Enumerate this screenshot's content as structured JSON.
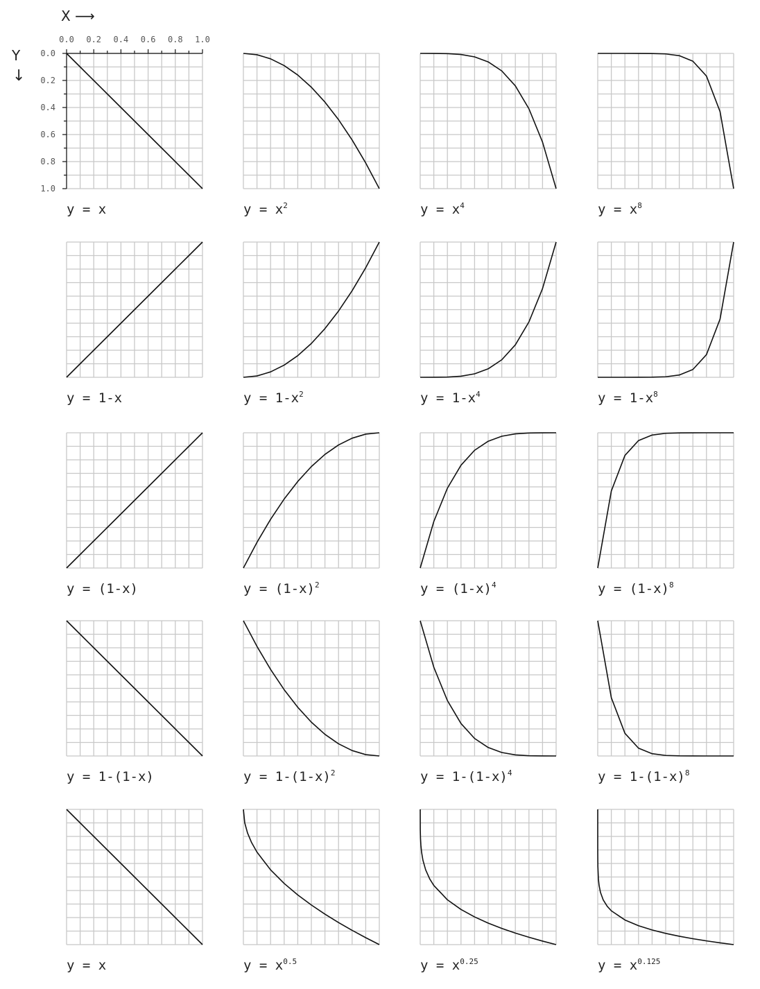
{
  "axes": {
    "x_title": "X",
    "x_arrow": "⟶",
    "y_title": "Y",
    "y_arrow": "↓",
    "x_ticks": [
      "0.0",
      "0.2",
      "0.4",
      "0.6",
      "0.8",
      "1.0"
    ],
    "y_ticks": [
      "0.0",
      "0.2",
      "0.4",
      "0.6",
      "0.8",
      "1.0"
    ]
  },
  "colors": {
    "grid": "#c8c8c8",
    "curve": "#111111",
    "text": "#222222"
  },
  "chart_data": [
    {
      "type": "line",
      "label_base": "y = x",
      "label_sup": "",
      "x": [
        0,
        0.1,
        0.2,
        0.3,
        0.4,
        0.5,
        0.6,
        0.7,
        0.8,
        0.9,
        1
      ],
      "y": [
        0,
        0.1,
        0.2,
        0.3,
        0.4,
        0.5,
        0.6,
        0.7,
        0.8,
        0.9,
        1
      ],
      "xlim": [
        0,
        1
      ],
      "ylim": [
        0,
        1
      ],
      "y_axis": "down",
      "grid": true
    },
    {
      "type": "line",
      "label_base": "y = x",
      "label_sup": "2",
      "x": [
        0,
        0.1,
        0.2,
        0.3,
        0.4,
        0.5,
        0.6,
        0.7,
        0.8,
        0.9,
        1
      ],
      "y": [
        0,
        0.01,
        0.04,
        0.09,
        0.16,
        0.25,
        0.36,
        0.49,
        0.64,
        0.81,
        1
      ],
      "xlim": [
        0,
        1
      ],
      "ylim": [
        0,
        1
      ],
      "y_axis": "down",
      "grid": true
    },
    {
      "type": "line",
      "label_base": "y = x",
      "label_sup": "4",
      "x": [
        0,
        0.1,
        0.2,
        0.3,
        0.4,
        0.5,
        0.6,
        0.7,
        0.8,
        0.9,
        1
      ],
      "y": [
        0,
        0.0001,
        0.0016,
        0.0081,
        0.0256,
        0.0625,
        0.1296,
        0.2401,
        0.4096,
        0.6561,
        1
      ],
      "xlim": [
        0,
        1
      ],
      "ylim": [
        0,
        1
      ],
      "y_axis": "down",
      "grid": true
    },
    {
      "type": "line",
      "label_base": "y = x",
      "label_sup": "8",
      "x": [
        0,
        0.1,
        0.2,
        0.3,
        0.4,
        0.5,
        0.6,
        0.7,
        0.8,
        0.9,
        1
      ],
      "y": [
        0,
        0,
        0,
        0.0001,
        0.0007,
        0.0039,
        0.0168,
        0.0576,
        0.1678,
        0.4305,
        1
      ],
      "xlim": [
        0,
        1
      ],
      "ylim": [
        0,
        1
      ],
      "y_axis": "down",
      "grid": true
    },
    {
      "type": "line",
      "label_base": "y = 1-x",
      "label_sup": "",
      "x": [
        0,
        0.1,
        0.2,
        0.3,
        0.4,
        0.5,
        0.6,
        0.7,
        0.8,
        0.9,
        1
      ],
      "y": [
        1,
        0.9,
        0.8,
        0.7,
        0.6,
        0.5,
        0.4,
        0.3,
        0.2,
        0.1,
        0
      ],
      "xlim": [
        0,
        1
      ],
      "ylim": [
        0,
        1
      ],
      "y_axis": "down",
      "grid": true
    },
    {
      "type": "line",
      "label_base": "y = 1-x",
      "label_sup": "2",
      "x": [
        0,
        0.1,
        0.2,
        0.3,
        0.4,
        0.5,
        0.6,
        0.7,
        0.8,
        0.9,
        1
      ],
      "y": [
        1,
        0.99,
        0.96,
        0.91,
        0.84,
        0.75,
        0.64,
        0.51,
        0.36,
        0.19,
        0
      ],
      "xlim": [
        0,
        1
      ],
      "ylim": [
        0,
        1
      ],
      "y_axis": "down",
      "grid": true
    },
    {
      "type": "line",
      "label_base": "y = 1-x",
      "label_sup": "4",
      "x": [
        0,
        0.1,
        0.2,
        0.3,
        0.4,
        0.5,
        0.6,
        0.7,
        0.8,
        0.9,
        1
      ],
      "y": [
        1,
        0.9999,
        0.9984,
        0.9919,
        0.9744,
        0.9375,
        0.8704,
        0.7599,
        0.5904,
        0.3439,
        0
      ],
      "xlim": [
        0,
        1
      ],
      "ylim": [
        0,
        1
      ],
      "y_axis": "down",
      "grid": true
    },
    {
      "type": "line",
      "label_base": "y = 1-x",
      "label_sup": "8",
      "x": [
        0,
        0.1,
        0.2,
        0.3,
        0.4,
        0.5,
        0.6,
        0.7,
        0.8,
        0.9,
        1
      ],
      "y": [
        1,
        1,
        1,
        0.9999,
        0.9993,
        0.9961,
        0.9832,
        0.9424,
        0.8322,
        0.5695,
        0
      ],
      "xlim": [
        0,
        1
      ],
      "ylim": [
        0,
        1
      ],
      "y_axis": "down",
      "grid": true
    },
    {
      "type": "line",
      "label_base": "y = (1-x)",
      "label_sup": "",
      "x": [
        0,
        0.1,
        0.2,
        0.3,
        0.4,
        0.5,
        0.6,
        0.7,
        0.8,
        0.9,
        1
      ],
      "y": [
        1,
        0.9,
        0.8,
        0.7,
        0.6,
        0.5,
        0.4,
        0.3,
        0.2,
        0.1,
        0
      ],
      "xlim": [
        0,
        1
      ],
      "ylim": [
        0,
        1
      ],
      "y_axis": "down",
      "grid": true
    },
    {
      "type": "line",
      "label_base": "y = (1-x)",
      "label_sup": "2",
      "x": [
        0,
        0.1,
        0.2,
        0.3,
        0.4,
        0.5,
        0.6,
        0.7,
        0.8,
        0.9,
        1
      ],
      "y": [
        1,
        0.81,
        0.64,
        0.49,
        0.36,
        0.25,
        0.16,
        0.09,
        0.04,
        0.01,
        0
      ],
      "xlim": [
        0,
        1
      ],
      "ylim": [
        0,
        1
      ],
      "y_axis": "down",
      "grid": true
    },
    {
      "type": "line",
      "label_base": "y = (1-x)",
      "label_sup": "4",
      "x": [
        0,
        0.1,
        0.2,
        0.3,
        0.4,
        0.5,
        0.6,
        0.7,
        0.8,
        0.9,
        1
      ],
      "y": [
        1,
        0.6561,
        0.4096,
        0.2401,
        0.1296,
        0.0625,
        0.0256,
        0.0081,
        0.0016,
        0.0001,
        0
      ],
      "xlim": [
        0,
        1
      ],
      "ylim": [
        0,
        1
      ],
      "y_axis": "down",
      "grid": true
    },
    {
      "type": "line",
      "label_base": "y = (1-x)",
      "label_sup": "8",
      "x": [
        0,
        0.1,
        0.2,
        0.3,
        0.4,
        0.5,
        0.6,
        0.7,
        0.8,
        0.9,
        1
      ],
      "y": [
        1,
        0.4305,
        0.1678,
        0.0576,
        0.0168,
        0.0039,
        0.0007,
        0.0001,
        0,
        0,
        0
      ],
      "xlim": [
        0,
        1
      ],
      "ylim": [
        0,
        1
      ],
      "y_axis": "down",
      "grid": true
    },
    {
      "type": "line",
      "label_base": "y = 1-(1-x)",
      "label_sup": "",
      "x": [
        0,
        0.1,
        0.2,
        0.3,
        0.4,
        0.5,
        0.6,
        0.7,
        0.8,
        0.9,
        1
      ],
      "y": [
        0,
        0.1,
        0.2,
        0.3,
        0.4,
        0.5,
        0.6,
        0.7,
        0.8,
        0.9,
        1
      ],
      "xlim": [
        0,
        1
      ],
      "ylim": [
        0,
        1
      ],
      "y_axis": "down",
      "grid": true
    },
    {
      "type": "line",
      "label_base": "y = 1-(1-x)",
      "label_sup": "2",
      "x": [
        0,
        0.1,
        0.2,
        0.3,
        0.4,
        0.5,
        0.6,
        0.7,
        0.8,
        0.9,
        1
      ],
      "y": [
        0,
        0.19,
        0.36,
        0.51,
        0.64,
        0.75,
        0.84,
        0.91,
        0.96,
        0.99,
        1
      ],
      "xlim": [
        0,
        1
      ],
      "ylim": [
        0,
        1
      ],
      "y_axis": "down",
      "grid": true
    },
    {
      "type": "line",
      "label_base": "y = 1-(1-x)",
      "label_sup": "4",
      "x": [
        0,
        0.1,
        0.2,
        0.3,
        0.4,
        0.5,
        0.6,
        0.7,
        0.8,
        0.9,
        1
      ],
      "y": [
        0,
        0.3439,
        0.5904,
        0.7599,
        0.8704,
        0.9375,
        0.9744,
        0.9919,
        0.9984,
        0.9999,
        1
      ],
      "xlim": [
        0,
        1
      ],
      "ylim": [
        0,
        1
      ],
      "y_axis": "down",
      "grid": true
    },
    {
      "type": "line",
      "label_base": "y = 1-(1-x)",
      "label_sup": "8",
      "x": [
        0,
        0.1,
        0.2,
        0.3,
        0.4,
        0.5,
        0.6,
        0.7,
        0.8,
        0.9,
        1
      ],
      "y": [
        0,
        0.5695,
        0.8322,
        0.9424,
        0.9832,
        0.9961,
        0.9993,
        0.9999,
        1,
        1,
        1
      ],
      "xlim": [
        0,
        1
      ],
      "ylim": [
        0,
        1
      ],
      "y_axis": "down",
      "grid": true
    },
    {
      "type": "line",
      "label_base": "y = x",
      "label_sup": "",
      "x": [
        0,
        0.1,
        0.2,
        0.3,
        0.4,
        0.5,
        0.6,
        0.7,
        0.8,
        0.9,
        1
      ],
      "y": [
        0,
        0.1,
        0.2,
        0.3,
        0.4,
        0.5,
        0.6,
        0.7,
        0.8,
        0.9,
        1
      ],
      "xlim": [
        0,
        1
      ],
      "ylim": [
        0,
        1
      ],
      "y_axis": "down",
      "grid": true
    },
    {
      "type": "line",
      "label_base": "y = x",
      "label_sup": "0.5",
      "x": [
        0,
        0.01,
        0.03,
        0.06,
        0.1,
        0.2,
        0.3,
        0.4,
        0.5,
        0.6,
        0.7,
        0.8,
        0.9,
        1
      ],
      "y": [
        0,
        0.1,
        0.1732,
        0.2449,
        0.3162,
        0.4472,
        0.5477,
        0.6325,
        0.7071,
        0.7746,
        0.8367,
        0.8944,
        0.9487,
        1
      ],
      "xlim": [
        0,
        1
      ],
      "ylim": [
        0,
        1
      ],
      "y_axis": "down",
      "grid": true
    },
    {
      "type": "line",
      "label_base": "y = x",
      "label_sup": "0.25",
      "x": [
        0,
        0.0005,
        0.002,
        0.005,
        0.01,
        0.02,
        0.04,
        0.07,
        0.1,
        0.2,
        0.3,
        0.4,
        0.5,
        0.6,
        0.7,
        0.8,
        0.9,
        1
      ],
      "y": [
        0,
        0.1495,
        0.2115,
        0.2659,
        0.3162,
        0.3761,
        0.4472,
        0.5144,
        0.5623,
        0.6687,
        0.7401,
        0.7953,
        0.8409,
        0.8801,
        0.9147,
        0.9457,
        0.974,
        1
      ],
      "xlim": [
        0,
        1
      ],
      "ylim": [
        0,
        1
      ],
      "y_axis": "down",
      "grid": true
    },
    {
      "type": "line",
      "label_base": "y = x",
      "label_sup": "0.125",
      "x": [
        0,
        1e-07,
        1e-06,
        1e-05,
        0.0001,
        0.001,
        0.005,
        0.01,
        0.02,
        0.04,
        0.07,
        0.1,
        0.2,
        0.3,
        0.4,
        0.5,
        0.6,
        0.7,
        0.8,
        0.9,
        1
      ],
      "y": [
        0,
        0.1334,
        0.1778,
        0.2371,
        0.3162,
        0.4217,
        0.5156,
        0.5623,
        0.6133,
        0.6687,
        0.7172,
        0.7499,
        0.8178,
        0.8603,
        0.8918,
        0.917,
        0.9381,
        0.9564,
        0.9725,
        0.987,
        1
      ],
      "xlim": [
        0,
        1
      ],
      "ylim": [
        0,
        1
      ],
      "y_axis": "down",
      "grid": true
    }
  ]
}
